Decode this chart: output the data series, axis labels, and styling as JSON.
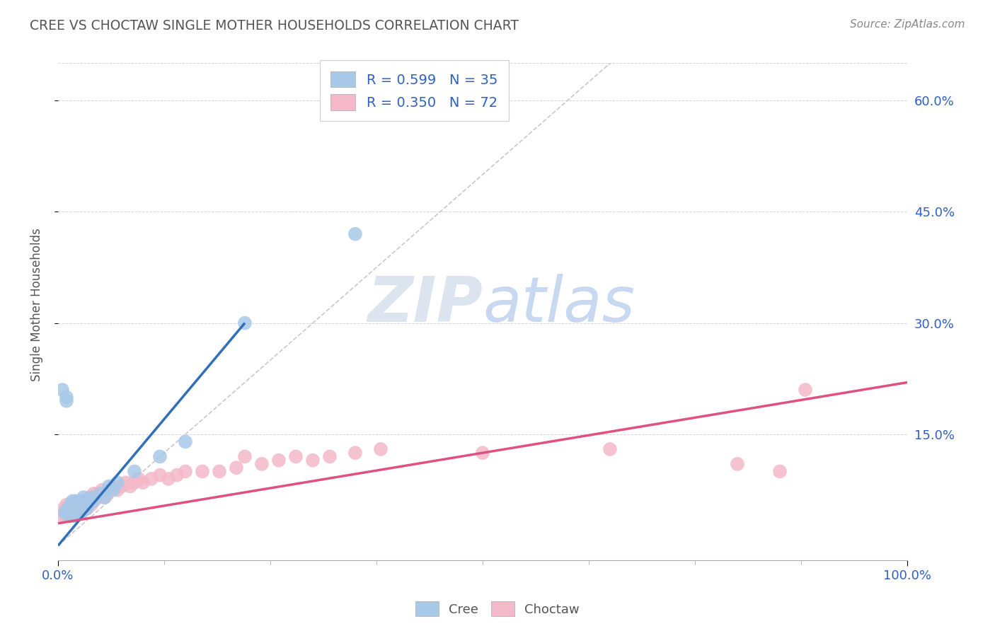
{
  "title": "CREE VS CHOCTAW SINGLE MOTHER HOUSEHOLDS CORRELATION CHART",
  "source_text": "Source: ZipAtlas.com",
  "ylabel": "Single Mother Households",
  "xlim": [
    0.0,
    1.0
  ],
  "ylim": [
    -0.02,
    0.67
  ],
  "ytick_labels": [
    "15.0%",
    "30.0%",
    "45.0%",
    "60.0%"
  ],
  "ytick_values": [
    0.15,
    0.3,
    0.45,
    0.6
  ],
  "legend_r_cree": "R = 0.599",
  "legend_n_cree": "N = 35",
  "legend_r_choctaw": "R = 0.350",
  "legend_n_choctaw": "N = 72",
  "cree_color": "#a8c8e8",
  "choctaw_color": "#f4b8c8",
  "cree_line_color": "#3070b8",
  "choctaw_line_color": "#e05080",
  "legend_text_color": "#3060c0",
  "background_color": "#ffffff",
  "watermark_text": "ZIPatlas",
  "watermark_color": "#dce4f0",
  "grid_color": "#cccccc",
  "title_color": "#555555",
  "axis_label_color": "#3060c0",
  "cree_x": [
    0.005,
    0.008,
    0.01,
    0.01,
    0.012,
    0.013,
    0.015,
    0.015,
    0.016,
    0.017,
    0.018,
    0.019,
    0.02,
    0.02,
    0.022,
    0.023,
    0.025,
    0.025,
    0.027,
    0.028,
    0.03,
    0.032,
    0.034,
    0.04,
    0.042,
    0.05,
    0.055,
    0.06,
    0.065,
    0.07,
    0.09,
    0.12,
    0.15,
    0.22,
    0.35
  ],
  "cree_y": [
    0.21,
    0.045,
    0.2,
    0.195,
    0.05,
    0.04,
    0.05,
    0.055,
    0.045,
    0.06,
    0.05,
    0.04,
    0.06,
    0.055,
    0.05,
    0.045,
    0.055,
    0.06,
    0.05,
    0.045,
    0.065,
    0.06,
    0.05,
    0.065,
    0.06,
    0.07,
    0.065,
    0.08,
    0.075,
    0.085,
    0.1,
    0.12,
    0.14,
    0.3,
    0.42
  ],
  "choctaw_x": [
    0.005,
    0.007,
    0.008,
    0.009,
    0.01,
    0.01,
    0.012,
    0.013,
    0.014,
    0.015,
    0.015,
    0.016,
    0.017,
    0.018,
    0.019,
    0.02,
    0.02,
    0.021,
    0.022,
    0.023,
    0.024,
    0.025,
    0.026,
    0.027,
    0.028,
    0.03,
    0.031,
    0.032,
    0.033,
    0.034,
    0.035,
    0.037,
    0.039,
    0.04,
    0.042,
    0.044,
    0.046,
    0.048,
    0.05,
    0.052,
    0.055,
    0.058,
    0.06,
    0.065,
    0.07,
    0.075,
    0.08,
    0.085,
    0.09,
    0.095,
    0.1,
    0.11,
    0.12,
    0.13,
    0.14,
    0.15,
    0.17,
    0.19,
    0.21,
    0.22,
    0.24,
    0.26,
    0.28,
    0.3,
    0.32,
    0.35,
    0.38,
    0.5,
    0.65,
    0.8,
    0.85,
    0.88
  ],
  "choctaw_y": [
    0.04,
    0.05,
    0.045,
    0.04,
    0.05,
    0.055,
    0.045,
    0.04,
    0.05,
    0.055,
    0.045,
    0.05,
    0.04,
    0.055,
    0.045,
    0.05,
    0.055,
    0.045,
    0.05,
    0.055,
    0.045,
    0.05,
    0.055,
    0.045,
    0.05,
    0.055,
    0.05,
    0.06,
    0.055,
    0.05,
    0.06,
    0.065,
    0.055,
    0.065,
    0.07,
    0.065,
    0.07,
    0.065,
    0.07,
    0.075,
    0.065,
    0.07,
    0.075,
    0.08,
    0.075,
    0.08,
    0.085,
    0.08,
    0.085,
    0.09,
    0.085,
    0.09,
    0.095,
    0.09,
    0.095,
    0.1,
    0.1,
    0.1,
    0.105,
    0.12,
    0.11,
    0.115,
    0.12,
    0.115,
    0.12,
    0.125,
    0.13,
    0.125,
    0.13,
    0.11,
    0.1,
    0.21
  ],
  "cree_line_x": [
    0.0,
    0.22
  ],
  "cree_line_y_start": 0.0,
  "cree_line_y_end": 0.3,
  "choctaw_line_x": [
    0.0,
    1.0
  ],
  "choctaw_line_y_start": 0.03,
  "choctaw_line_y_end": 0.22
}
